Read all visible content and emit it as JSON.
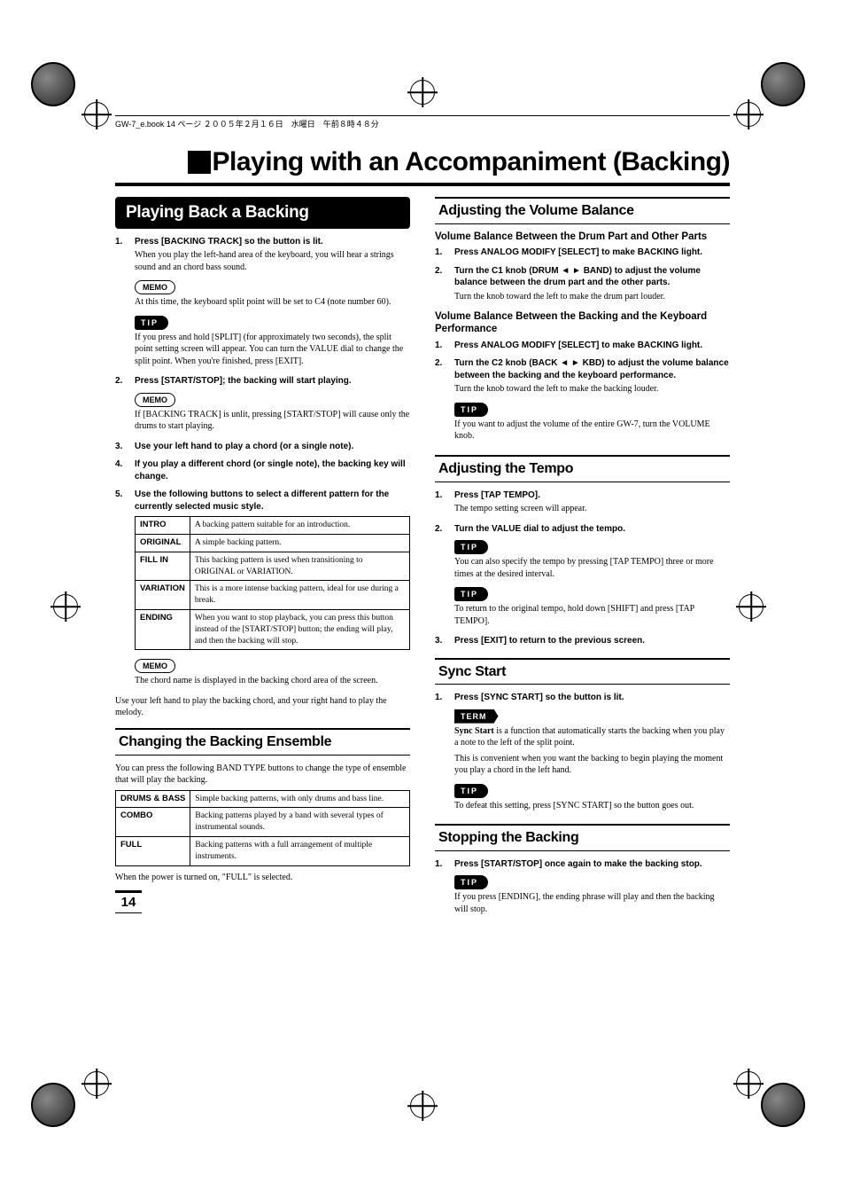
{
  "header_text": "GW-7_e.book 14 ページ ２００５年２月１６日　水曜日　午前８時４８分",
  "main_title": "Playing with an Accompaniment (Backing)",
  "page_number": "14",
  "badges": {
    "memo": "MEMO",
    "tip": "TIP",
    "term": "TERM"
  },
  "left": {
    "section1": {
      "title": "Playing Back a Backing",
      "steps": [
        {
          "n": "1.",
          "head": "Press [BACKING TRACK] so the button is lit.",
          "body": "When you play the left-hand area of the keyboard, you will hear a strings sound and an chord bass sound.",
          "memo": "At this time, the keyboard split point will be set to C4 (note number 60).",
          "tip": "If you press and hold [SPLIT] (for approximately two seconds), the split point setting screen will appear. You can turn the VALUE dial to change the split point. When you're finished, press [EXIT]."
        },
        {
          "n": "2.",
          "head": "Press [START/STOP]; the backing will start playing.",
          "memo": "If [BACKING TRACK] is unlit, pressing [START/STOP] will cause only the drums to start playing."
        },
        {
          "n": "3.",
          "head": "Use your left hand to play a chord (or a single note)."
        },
        {
          "n": "4.",
          "head": "If you play a different chord (or single note), the backing key will change."
        },
        {
          "n": "5.",
          "head": "Use the following buttons to select a different pattern for the currently selected music style."
        }
      ],
      "table": [
        {
          "k": "INTRO",
          "v": "A backing pattern suitable for an introduction."
        },
        {
          "k": "ORIGINAL",
          "v": "A simple backing pattern."
        },
        {
          "k": "FILL IN",
          "v": "This backing pattern is used when transitioning to ORIGINAL or VARIATION."
        },
        {
          "k": "VARIATION",
          "v": "This is a more intense backing pattern, ideal for use during a break."
        },
        {
          "k": "ENDING",
          "v": "When you want to stop playback, you can press this button instead of the [START/STOP] button; the ending will play, and then the backing will stop."
        }
      ],
      "post_memo": "The chord name is displayed in the backing chord area of the screen.",
      "post_text": "Use your left hand to play the backing chord, and your right hand to play the melody."
    },
    "section2": {
      "title": "Changing the Backing Ensemble",
      "intro": "You can press the following BAND TYPE buttons to change the type of ensemble that will play the backing.",
      "table": [
        {
          "k": "DRUMS & BASS",
          "v": "Simple backing patterns, with only drums and bass line."
        },
        {
          "k": "COMBO",
          "v": "Backing patterns played by a band with several types of instrumental sounds."
        },
        {
          "k": "FULL",
          "v": "Backing patterns with a full arrangement of multiple instruments."
        }
      ],
      "note": "When the power is turned on, \"FULL\" is selected."
    }
  },
  "right": {
    "section1": {
      "title": "Adjusting the Volume Balance",
      "sub1": {
        "title": "Volume Balance Between the Drum Part and Other Parts",
        "steps": [
          {
            "n": "1.",
            "head": "Press ANALOG MODIFY [SELECT] to make BACKING light."
          },
          {
            "n": "2.",
            "head": "Turn the C1 knob (DRUM ◄ ► BAND) to adjust the volume balance between the drum part and the other parts.",
            "body": "Turn the knob toward the left to make the drum part louder."
          }
        ]
      },
      "sub2": {
        "title": "Volume Balance Between the Backing and the Keyboard Performance",
        "steps": [
          {
            "n": "1.",
            "head": "Press ANALOG MODIFY [SELECT] to make BACKING light."
          },
          {
            "n": "2.",
            "head": "Turn the C2 knob (BACK ◄ ► KBD) to adjust the volume balance between the backing and the keyboard performance.",
            "body": "Turn the knob toward the left to make the backing louder.",
            "tip": "If you want to adjust the volume of the entire GW-7, turn the VOLUME knob."
          }
        ]
      }
    },
    "section2": {
      "title": "Adjusting the Tempo",
      "steps": [
        {
          "n": "1.",
          "head": "Press [TAP TEMPO].",
          "body": "The tempo setting screen will appear."
        },
        {
          "n": "2.",
          "head": "Turn the VALUE dial to adjust the tempo.",
          "tip": "You can also specify the tempo by pressing [TAP TEMPO] three or more times at the desired interval.",
          "tip2": "To return to the original tempo, hold down [SHIFT] and press [TAP TEMPO]."
        },
        {
          "n": "3.",
          "head": "Press [EXIT] to return to the previous screen."
        }
      ]
    },
    "section3": {
      "title": "Sync Start",
      "steps": [
        {
          "n": "1.",
          "head": "Press [SYNC START] so the button is lit.",
          "term_lead": "Sync Start",
          "term_body": " is a function that automatically starts the backing when you play a note to the left of the split point.",
          "extra": "This is convenient when you want the backing to begin playing the moment you play a chord in the left hand.",
          "tip": "To defeat this setting, press [SYNC START] so the button goes out."
        }
      ]
    },
    "section4": {
      "title": "Stopping the Backing",
      "steps": [
        {
          "n": "1.",
          "head": "Press [START/STOP] once again to make the backing stop.",
          "tip": "If you press [ENDING], the ending phrase will play and then the backing will stop."
        }
      ]
    }
  }
}
